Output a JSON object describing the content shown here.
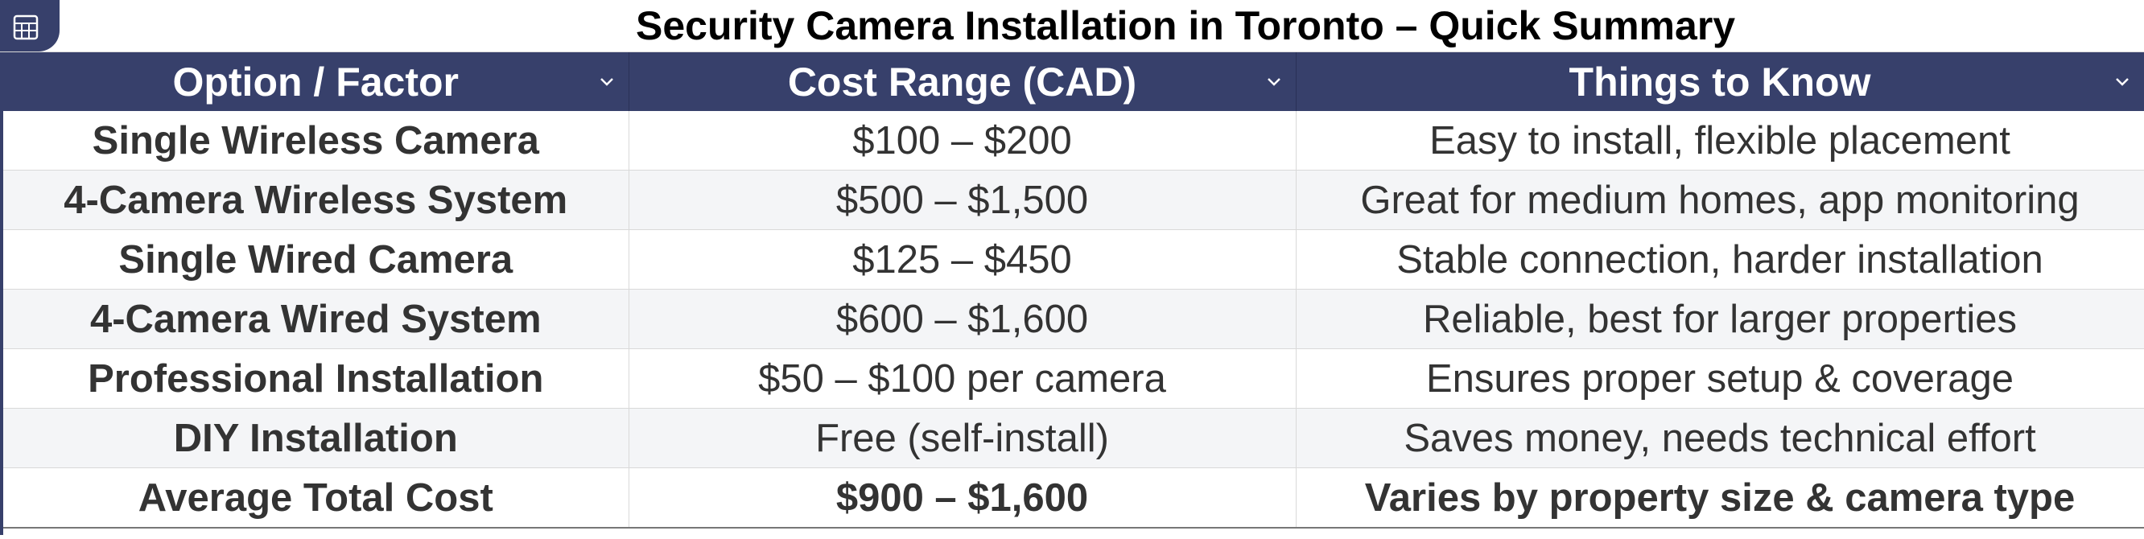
{
  "sheet": {
    "title": "Security Camera Installation in Toronto – Quick Summary",
    "icon": "spreadsheet-icon",
    "columns": [
      {
        "label": "Option / Factor"
      },
      {
        "label": "Cost Range (CAD)"
      },
      {
        "label": "Things to Know"
      }
    ],
    "rows": [
      {
        "option": "Single Wireless Camera",
        "cost": "$100 – $200",
        "notes": "Easy to install, flexible placement"
      },
      {
        "option": "4-Camera Wireless System",
        "cost": "$500 – $1,500",
        "notes": "Great for medium homes, app monitoring"
      },
      {
        "option": "Single Wired Camera",
        "cost": "$125 – $450",
        "notes": "Stable connection, harder installation"
      },
      {
        "option": "4-Camera Wired System",
        "cost": "$600 – $1,600",
        "notes": "Reliable, best for larger properties"
      },
      {
        "option": "Professional Installation",
        "cost": "$50 – $100 per camera",
        "notes": "Ensures proper setup & coverage"
      },
      {
        "option": "DIY Installation",
        "cost": "Free (self-install)",
        "notes": "Saves money, needs technical effort"
      },
      {
        "option": "Average Total Cost",
        "cost": "$900 – $1,600",
        "notes": "Varies by property size & camera type"
      }
    ],
    "colors": {
      "header_bg": "#37406b",
      "header_text": "#ffffff",
      "alt_row_bg": "#f4f5f7"
    }
  }
}
